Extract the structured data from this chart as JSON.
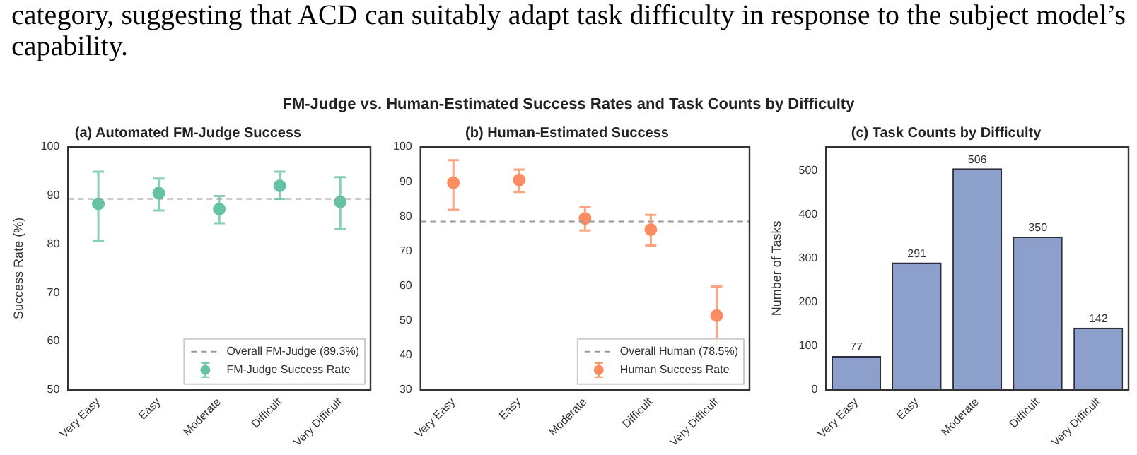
{
  "chart_data": [
    {
      "type": "other",
      "title": "FM-Judge vs. Human-Estimated Success Rates and Task Counts by Difficulty",
      "annotations": [
        "category, suggesting that ACD can suitably adapt task difficulty in response to the subject model’s capability."
      ]
    },
    {
      "type": "scatter",
      "title": "(a) Automated FM-Judge Success",
      "ylabel": "Success Rate (%)",
      "categories": [
        "Very Easy",
        "Easy",
        "Moderate",
        "Difficult",
        "Very Difficult"
      ],
      "series": [
        {
          "name": "FM-Judge Success Rate",
          "color": "#66c2a5",
          "values": [
            88.3,
            90.5,
            87.2,
            92.0,
            88.7
          ],
          "errors": [
            [
              80.6,
              94.9
            ],
            [
              86.9,
              93.5
            ],
            [
              84.3,
              89.9
            ],
            [
              89.3,
              94.9
            ],
            [
              83.2,
              93.8
            ]
          ]
        }
      ],
      "ylim": [
        50,
        100
      ],
      "yticks": [
        50,
        60,
        70,
        80,
        90,
        100
      ],
      "ref_lines": [
        {
          "axis": "y",
          "value": 89.3,
          "label": "Overall FM-Judge (89.3%)",
          "color": "#999999",
          "line_style": "dashed"
        }
      ],
      "legend": "bottom right",
      "marker": "circle",
      "grid": false
    },
    {
      "type": "scatter",
      "title": "(b) Human-Estimated Success",
      "categories": [
        "Very Easy",
        "Easy",
        "Moderate",
        "Difficult",
        "Very Difficult"
      ],
      "series": [
        {
          "name": "Human Success Rate",
          "color": "#fc8d62",
          "values": [
            89.7,
            90.5,
            79.4,
            76.2,
            51.4
          ],
          "errors": [
            [
              81.9,
              96.2
            ],
            [
              87.0,
              93.5
            ],
            [
              75.9,
              82.7
            ],
            [
              71.6,
              80.4
            ],
            [
              43.0,
              59.8
            ]
          ]
        }
      ],
      "ylim": [
        30,
        100
      ],
      "yticks": [
        30,
        40,
        50,
        60,
        70,
        80,
        90,
        100
      ],
      "ref_lines": [
        {
          "axis": "y",
          "value": 78.5,
          "label": "Overall Human (78.5%)",
          "color": "#999999",
          "line_style": "dashed"
        }
      ],
      "legend": "bottom right",
      "marker": "circle",
      "grid": false
    },
    {
      "type": "bar",
      "title": "(c) Task Counts by Difficulty",
      "ylabel": "Number of Tasks",
      "categories": [
        "Very Easy",
        "Easy",
        "Moderate",
        "Difficult",
        "Very Difficult"
      ],
      "values": [
        77,
        291,
        506,
        350,
        142
      ],
      "color": "#8da0cb",
      "ylim": [
        0,
        555
      ],
      "yticks": [
        0,
        100,
        200,
        300,
        400,
        500
      ],
      "data_labels": true,
      "grid": false
    }
  ]
}
